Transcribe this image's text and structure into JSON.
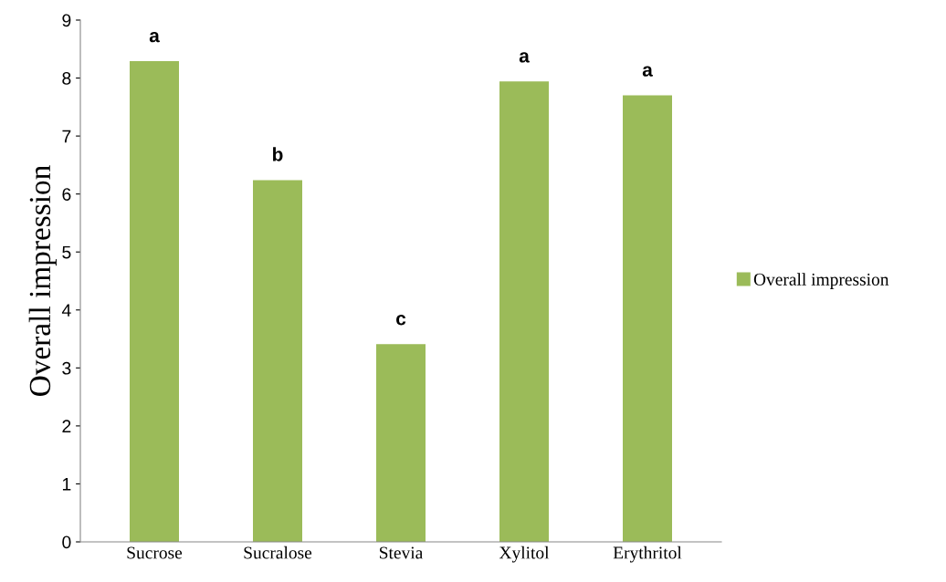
{
  "chart_data": {
    "type": "bar",
    "ylabel": "Overall impression",
    "categories": [
      "Sucrose",
      "Sucralose",
      "Stevia",
      "Xylitol",
      "Erythritol"
    ],
    "series": [
      {
        "name": "Overall impression",
        "color": "#9bbb59",
        "values": [
          8.29,
          6.24,
          3.41,
          7.94,
          7.7
        ]
      }
    ],
    "ylim": [
      0,
      9
    ],
    "yticks": [
      0,
      1,
      2,
      3,
      4,
      5,
      6,
      7,
      8,
      9
    ],
    "grid": false,
    "legend": "right",
    "annotations": [
      {
        "text": "a",
        "x": "Sucrose",
        "y": 8.29
      },
      {
        "text": "b",
        "x": "Sucralose",
        "y": 6.24
      },
      {
        "text": "c",
        "x": "Stevia",
        "y": 3.41
      },
      {
        "text": "a",
        "x": "Xylitol",
        "y": 7.94
      },
      {
        "text": "a",
        "x": "Erythritol",
        "y": 7.7
      }
    ]
  }
}
